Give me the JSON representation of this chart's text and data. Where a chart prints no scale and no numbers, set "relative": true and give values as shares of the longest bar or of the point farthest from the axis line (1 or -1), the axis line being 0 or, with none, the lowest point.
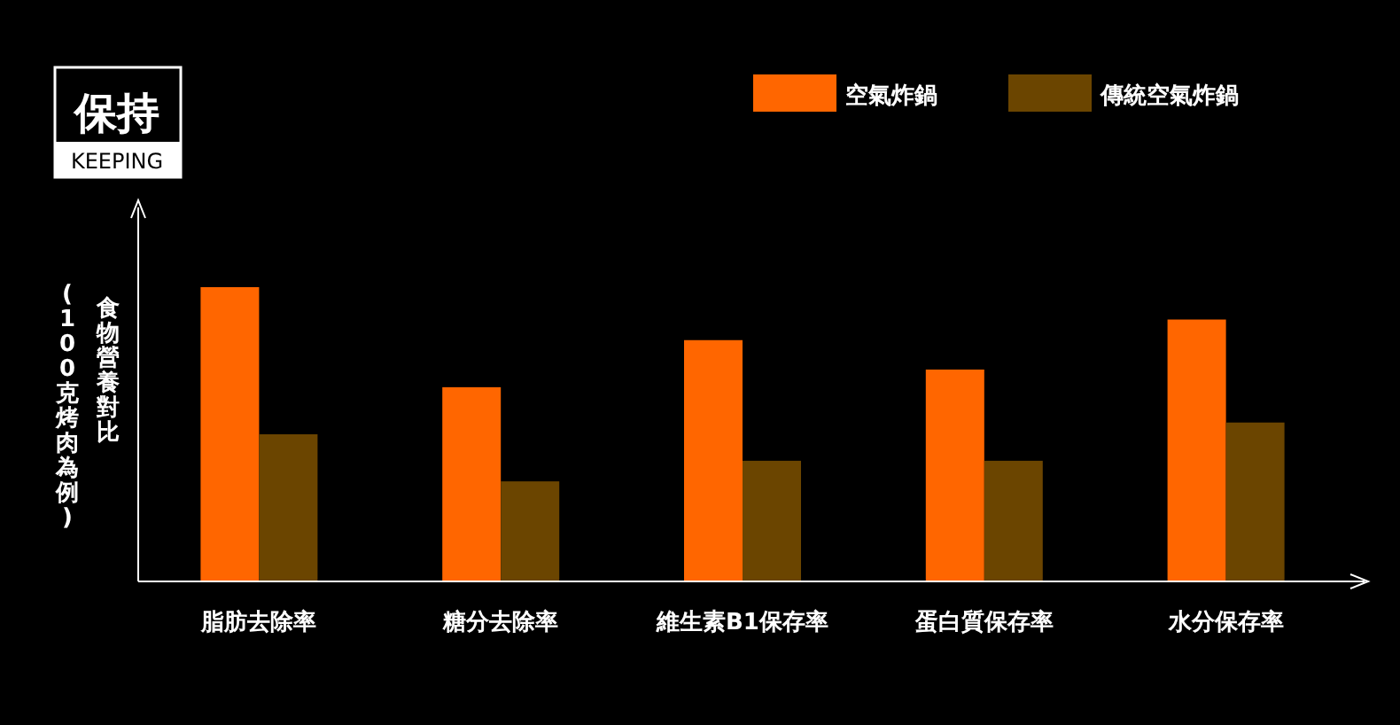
{
  "chart_data": {
    "type": "bar",
    "title": "保持",
    "subtitle": "KEEPING",
    "ylabel": "食物營養對比",
    "annotations": [
      "(100克烤肉為例)"
    ],
    "categories": [
      "脂肪去除率",
      "糖分去除率",
      "維生素B1保存率",
      "蛋白質保存率",
      "水分保存率"
    ],
    "relative": true,
    "legend": "top right",
    "series": [
      {
        "name": "空氣炸鍋",
        "color": "#ff6600",
        "values": [
          1,
          0.66,
          0.82,
          0.72,
          0.89
        ]
      },
      {
        "name": "傳統空氣炸鍋",
        "color": "#6b4500",
        "values": [
          0.5,
          0.34,
          0.41,
          0.41,
          0.54
        ]
      }
    ]
  }
}
